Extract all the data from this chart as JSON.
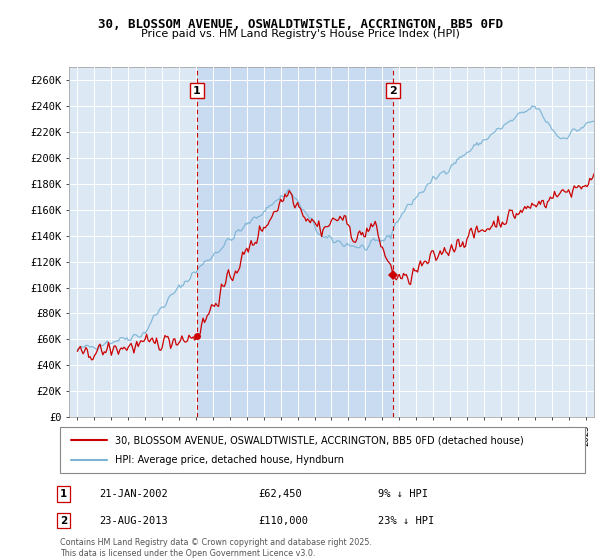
{
  "title": "30, BLOSSOM AVENUE, OSWALDTWISTLE, ACCRINGTON, BB5 0FD",
  "subtitle": "Price paid vs. HM Land Registry's House Price Index (HPI)",
  "ylabel_ticks": [
    "£0",
    "£20K",
    "£40K",
    "£60K",
    "£80K",
    "£100K",
    "£120K",
    "£140K",
    "£160K",
    "£180K",
    "£200K",
    "£220K",
    "£240K",
    "£260K"
  ],
  "ytick_values": [
    0,
    20000,
    40000,
    60000,
    80000,
    100000,
    120000,
    140000,
    160000,
    180000,
    200000,
    220000,
    240000,
    260000
  ],
  "ylim": [
    0,
    270000
  ],
  "sale1_date": 2002.05,
  "sale1_price": 62450,
  "sale1_label": "1",
  "sale2_date": 2013.64,
  "sale2_price": 110000,
  "sale2_label": "2",
  "hpi_color": "#7ab3d4",
  "price_color": "#cc0000",
  "vline_color": "#cc0000",
  "background_color": "#dce9f5",
  "grid_color": "#ffffff",
  "legend_label1": "30, BLOSSOM AVENUE, OSWALDTWISTLE, ACCRINGTON, BB5 0FD (detached house)",
  "legend_label2": "HPI: Average price, detached house, Hyndburn",
  "copyright": "Contains HM Land Registry data © Crown copyright and database right 2025.\nThis data is licensed under the Open Government Licence v3.0.",
  "xlim_start": 1994.5,
  "xlim_end": 2025.5,
  "xtick_years": [
    1995,
    1996,
    1997,
    1998,
    1999,
    2000,
    2001,
    2002,
    2003,
    2004,
    2005,
    2006,
    2007,
    2008,
    2009,
    2010,
    2011,
    2012,
    2013,
    2014,
    2015,
    2016,
    2017,
    2018,
    2019,
    2020,
    2021,
    2022,
    2023,
    2024,
    2025
  ],
  "shaded_region_color": "#c8dbf0"
}
